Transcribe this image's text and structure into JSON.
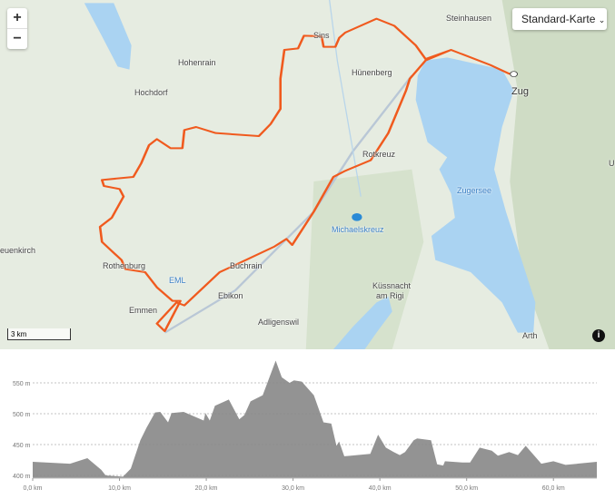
{
  "map": {
    "zoom_in": "+",
    "zoom_out": "−",
    "layer_select": "Standard-Karte",
    "scale": "3 km",
    "info_icon": "i",
    "places": [
      "Steinhausen",
      "Sins",
      "Hohenrain",
      "Hünenberg",
      "Zug",
      "Hochdorf",
      "Rotkreuz",
      "Zugersee",
      "Michaelskreuz",
      "euenkirch",
      "Rothenburg",
      "EML",
      "Buchrain",
      "Ebikon",
      "Emmen",
      "Küssnacht",
      "am Rigi",
      "Adligenswil",
      "Arth",
      "U"
    ],
    "route_color": "#f05a1e",
    "water_color": "#aad3f2"
  },
  "chart_data": {
    "type": "area",
    "title": "",
    "xlabel": "",
    "ylabel": "",
    "xlim": [
      0,
      65
    ],
    "ylim": [
      395,
      590
    ],
    "x_ticks": [
      "0,0 km",
      "10,0 km",
      "20,0 km",
      "30,0 km",
      "40,0 km",
      "50,0 km",
      "60,0 km"
    ],
    "y_ticks": [
      "400 m",
      "450 m",
      "500 m",
      "550 m"
    ],
    "grid": "dashed horizontal",
    "fill_color": "#939393",
    "x": [
      0,
      4.3,
      6.3,
      7.9,
      8.4,
      10.4,
      11.3,
      12.4,
      13.1,
      14.1,
      14.7,
      15.6,
      16,
      17.4,
      19.7,
      19.9,
      20.4,
      21,
      22.6,
      23.8,
      24.4,
      25.1,
      26.5,
      28,
      28.7,
      29.6,
      30.1,
      31,
      32.4,
      33.5,
      34.4,
      35,
      35.3,
      35.9,
      38.9,
      39.8,
      40.7,
      41.6,
      42.3,
      42.9,
      43.9,
      44.3,
      45.9,
      46.6,
      47.3,
      47.5,
      49.5,
      50.4,
      51.5,
      52.9,
      53.6,
      54.9,
      55.9,
      56.8,
      58.6,
      60,
      61.4,
      65
    ],
    "y": [
      422,
      419,
      428,
      409,
      400,
      398,
      411,
      457,
      477,
      502,
      503,
      486,
      501,
      503,
      489,
      501,
      489,
      513,
      523,
      491,
      498,
      520,
      530,
      586,
      559,
      550,
      554,
      552,
      530,
      486,
      484,
      448,
      455,
      431,
      435,
      466,
      445,
      438,
      433,
      438,
      457,
      460,
      457,
      418,
      416,
      423,
      421,
      421,
      445,
      440,
      432,
      438,
      433,
      448,
      419,
      423,
      417,
      422
    ]
  }
}
